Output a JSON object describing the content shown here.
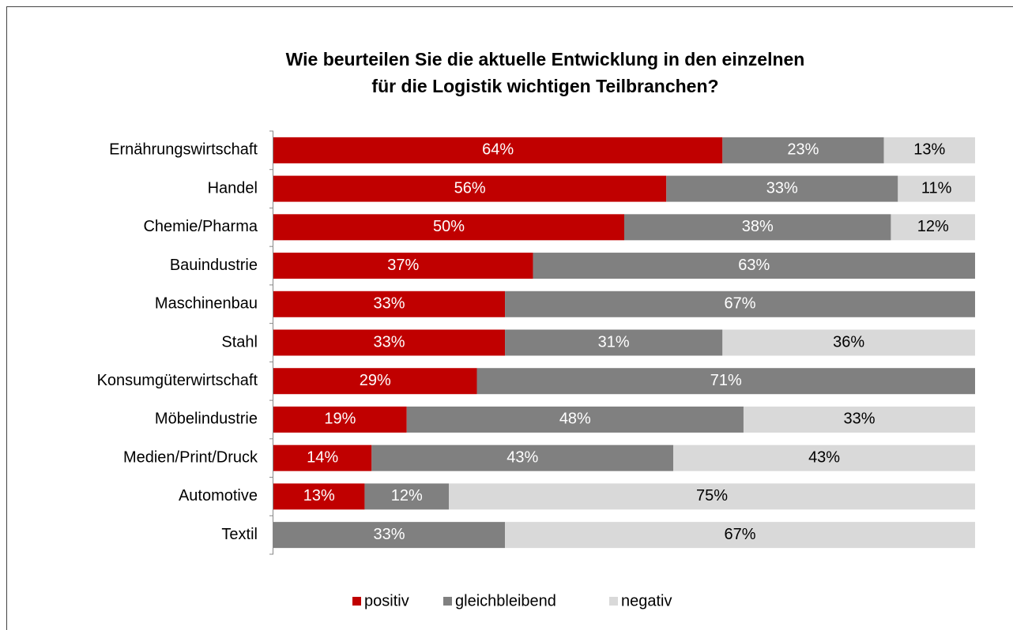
{
  "chart_data": {
    "type": "stacked_bar_horizontal",
    "title": [
      "Wie beurteilen Sie die aktuelle Entwicklung in den einzelnen",
      "für die Logistik wichtigen Teilbranchen?"
    ],
    "categories": [
      "Ernährungswirtschaft",
      "Handel",
      "Chemie/Pharma",
      "Bauindustrie",
      "Maschinenbau",
      "Stahl",
      "Konsumgüterwirtschaft",
      "Möbelindustrie",
      "Medien/Print/Druck",
      "Automotive",
      "Textil"
    ],
    "series": [
      {
        "name": "positiv",
        "color": "#c00000",
        "label_color": "#ffffff",
        "values": [
          64,
          56,
          50,
          37,
          33,
          33,
          29,
          19,
          14,
          13,
          0
        ],
        "value_labels": [
          "64%",
          "56%",
          "50%",
          "37%",
          "33%",
          "33%",
          "29%",
          "19%",
          "14%",
          "13%",
          null
        ]
      },
      {
        "name": "gleichbleibend",
        "color": "#808080",
        "label_color": "#ffffff",
        "values": [
          23,
          33,
          38,
          63,
          67,
          31,
          71,
          48,
          43,
          12,
          33
        ],
        "value_labels": [
          "23%",
          "33%",
          "38%",
          "63%",
          "67%",
          "31%",
          "71%",
          "48%",
          "43%",
          "12%",
          "33%"
        ]
      },
      {
        "name": "negativ",
        "color": "#d9d9d9",
        "label_color": "#000000",
        "values": [
          13,
          11,
          12,
          0,
          0,
          36,
          0,
          33,
          43,
          75,
          67
        ],
        "value_labels": [
          "13%",
          "11%",
          "12%",
          null,
          null,
          "36%",
          null,
          "33%",
          "43%",
          "75%",
          "67%"
        ]
      }
    ],
    "legend": "bottom"
  }
}
